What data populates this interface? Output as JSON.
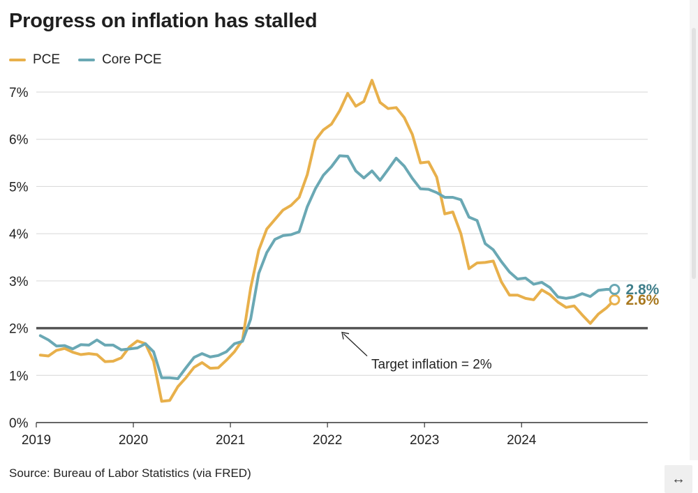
{
  "title": "Progress on inflation has stalled",
  "source": "Source: Bureau of Labor Statistics (via FRED)",
  "expand_icon": "↔",
  "colors": {
    "pce": "#e8b04b",
    "core": "#6aa8b4",
    "pce_label": "#a8781e",
    "core_label": "#3f7e8a",
    "grid": "#d6d6d6",
    "target": "#555555"
  },
  "chart_data": {
    "type": "line",
    "title": "Progress on inflation has stalled",
    "xlabel": "",
    "ylabel": "",
    "ylim": [
      0,
      7
    ],
    "xlim": [
      2019,
      2025.3
    ],
    "yticks": [
      0,
      1,
      2,
      3,
      4,
      5,
      6,
      7
    ],
    "ytick_labels": [
      "0%",
      "1%",
      "2%",
      "3%",
      "4%",
      "5%",
      "6%",
      "7%"
    ],
    "xticks": [
      2019,
      2020,
      2021,
      2022,
      2023,
      2024
    ],
    "xtick_labels": [
      "2019",
      "2020",
      "2021",
      "2022",
      "2023",
      "2024"
    ],
    "grid": true,
    "legend": "top-left",
    "series": [
      {
        "name": "PCE",
        "end_label": "2.6%",
        "values": [
          1.43,
          1.41,
          1.53,
          1.57,
          1.49,
          1.44,
          1.46,
          1.44,
          1.29,
          1.3,
          1.37,
          1.6,
          1.73,
          1.67,
          1.3,
          0.45,
          0.47,
          0.76,
          0.95,
          1.17,
          1.27,
          1.15,
          1.16,
          1.32,
          1.5,
          1.75,
          2.85,
          3.65,
          4.1,
          4.3,
          4.5,
          4.6,
          4.77,
          5.25,
          5.98,
          6.2,
          6.32,
          6.6,
          6.97,
          6.7,
          6.8,
          7.25,
          6.78,
          6.65,
          6.67,
          6.46,
          6.1,
          5.5,
          5.52,
          5.2,
          4.42,
          4.46,
          4.0,
          3.26,
          3.38,
          3.39,
          3.42,
          2.98,
          2.7,
          2.7,
          2.63,
          2.6,
          2.81,
          2.71,
          2.55,
          2.44,
          2.47,
          2.28,
          2.1,
          2.3,
          2.43,
          2.6
        ]
      },
      {
        "name": "Core PCE",
        "end_label": "2.8%",
        "values": [
          1.84,
          1.75,
          1.62,
          1.63,
          1.56,
          1.65,
          1.64,
          1.75,
          1.64,
          1.64,
          1.54,
          1.56,
          1.58,
          1.67,
          1.5,
          0.95,
          0.95,
          0.93,
          1.16,
          1.38,
          1.46,
          1.39,
          1.42,
          1.5,
          1.67,
          1.72,
          2.19,
          3.16,
          3.6,
          3.88,
          3.96,
          3.98,
          4.04,
          4.57,
          4.95,
          5.24,
          5.42,
          5.65,
          5.64,
          5.33,
          5.18,
          5.33,
          5.13,
          5.36,
          5.6,
          5.43,
          5.17,
          4.95,
          4.94,
          4.87,
          4.77,
          4.77,
          4.72,
          4.35,
          4.28,
          3.79,
          3.66,
          3.41,
          3.19,
          3.04,
          3.06,
          2.93,
          2.97,
          2.86,
          2.66,
          2.63,
          2.66,
          2.73,
          2.67,
          2.8,
          2.82,
          2.82
        ]
      }
    ],
    "annotations": [
      {
        "type": "hline",
        "y": 2,
        "label": "Target inflation = 2%"
      }
    ]
  }
}
